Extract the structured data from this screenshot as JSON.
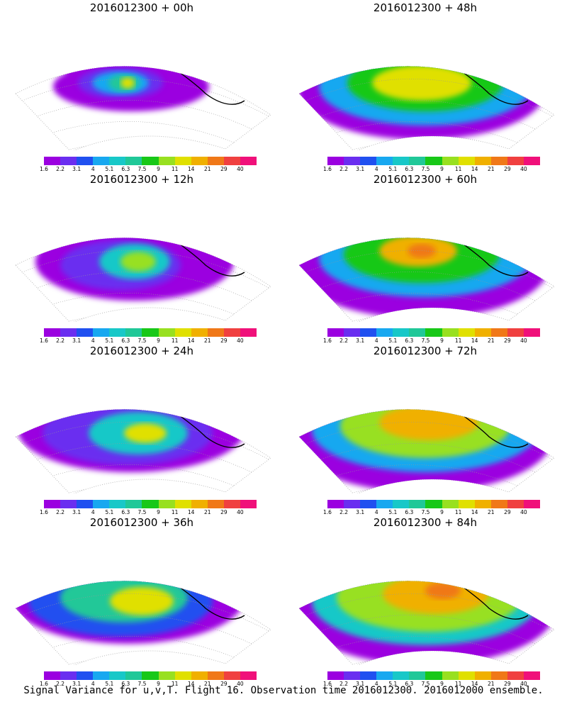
{
  "footer": "Signal Variance for u,v,T. Flight 16. Observation time 2016012300. 2016012000 ensemble.",
  "colorbar": {
    "labels": [
      "1.6",
      "2.2",
      "3.1",
      "4",
      "5.1",
      "6.3",
      "7.5",
      "9",
      "11",
      "14",
      "21",
      "29",
      "40"
    ],
    "colors": [
      "#9b00e0",
      "#6a2ef0",
      "#2050f0",
      "#18a8f0",
      "#18c8c8",
      "#20c898",
      "#18c818",
      "#98e020",
      "#e0e000",
      "#f0b000",
      "#f07818",
      "#f04040",
      "#f0107a"
    ]
  },
  "panels": [
    {
      "title": "2016012300 + 00h"
    },
    {
      "title": "2016012300 + 48h"
    },
    {
      "title": "2016012300 + 12h"
    },
    {
      "title": "2016012300 + 60h"
    },
    {
      "title": "2016012300 + 24h"
    },
    {
      "title": "2016012300 + 72h"
    },
    {
      "title": "2016012300 + 36h"
    },
    {
      "title": "2016012300 + 84h"
    }
  ]
}
